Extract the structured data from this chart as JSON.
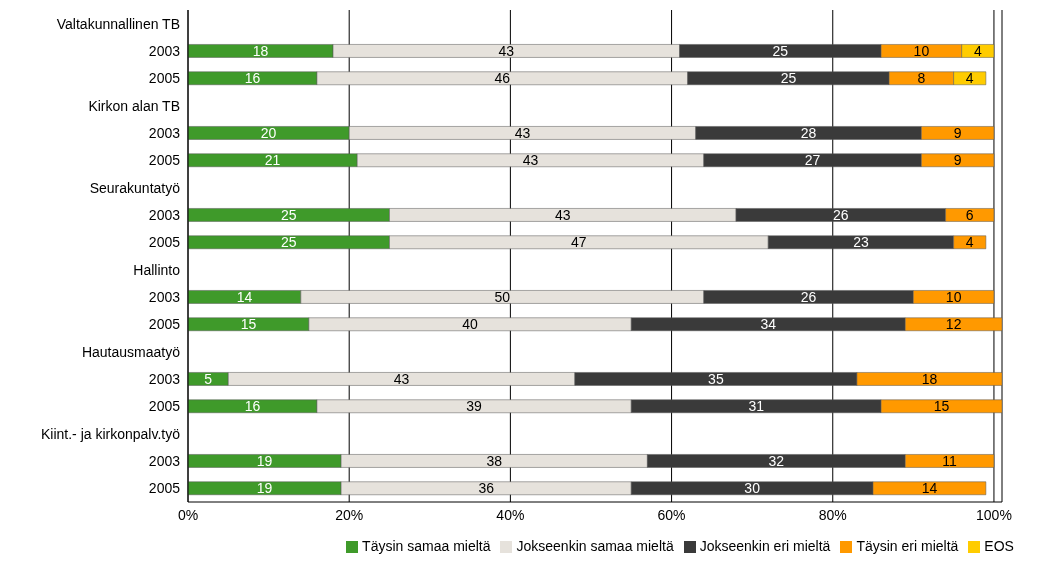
{
  "chart_data": {
    "type": "bar",
    "orientation": "horizontal",
    "stacked": true,
    "categories": [
      "Valtakunnallinen TB",
      "2003",
      "2005",
      "Kirkon alan TB",
      "2003",
      "2005",
      "Seurakuntatyö",
      "2003",
      "2005",
      "Hallinto",
      "2003",
      "2005",
      "Hautausmaatyö",
      "2003",
      "2005",
      "Kiint.- ja kirkonpalv.työ",
      "2003",
      "2005"
    ],
    "series": [
      {
        "name": "Täysin samaa mieltä",
        "color": "#3f9a2a",
        "values": [
          null,
          18,
          16,
          null,
          20,
          21,
          null,
          25,
          25,
          null,
          14,
          15,
          null,
          5,
          16,
          null,
          19,
          19
        ]
      },
      {
        "name": "Jokseenkin samaa mieltä",
        "color": "#e6e2dc",
        "values": [
          null,
          43,
          46,
          null,
          43,
          43,
          null,
          43,
          47,
          null,
          50,
          40,
          null,
          43,
          39,
          null,
          38,
          36
        ]
      },
      {
        "name": "Jokseenkin eri mieltä",
        "color": "#3a3a3a",
        "values": [
          null,
          25,
          25,
          null,
          28,
          27,
          null,
          26,
          23,
          null,
          26,
          34,
          null,
          35,
          31,
          null,
          32,
          30
        ]
      },
      {
        "name": "Täysin eri mieltä",
        "color": "#ff9900",
        "values": [
          null,
          10,
          8,
          null,
          9,
          9,
          null,
          6,
          4,
          null,
          10,
          12,
          null,
          18,
          15,
          null,
          11,
          14
        ]
      },
      {
        "name": "EOS",
        "color": "#ffcc00",
        "values": [
          null,
          4,
          4,
          null,
          null,
          null,
          null,
          null,
          null,
          null,
          null,
          null,
          null,
          null,
          null,
          null,
          null,
          null
        ]
      }
    ],
    "xlim": [
      0,
      101
    ],
    "xticks": [
      {
        "value": 0,
        "label": "0%"
      },
      {
        "value": 20,
        "label": "20%"
      },
      {
        "value": 40,
        "label": "40%"
      },
      {
        "value": 60,
        "label": "60%"
      },
      {
        "value": 80,
        "label": "80%"
      },
      {
        "value": 100,
        "label": "100%"
      }
    ],
    "grid": "x",
    "legend": "bottom",
    "data_labels": true
  }
}
